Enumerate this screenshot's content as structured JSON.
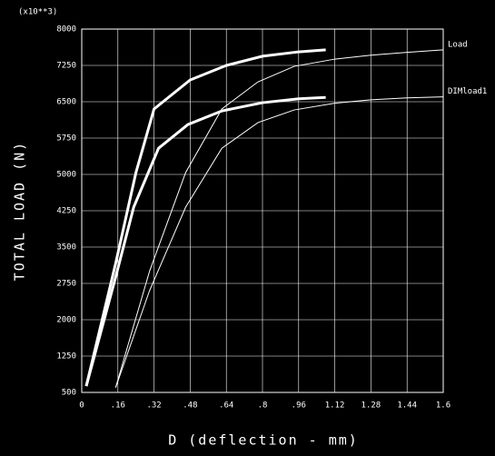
{
  "chart_data": {
    "type": "line",
    "multiplier": "(x10**3)",
    "xlabel": "D (deflection - mm)",
    "ylabel": "TOTAL LOAD (N)",
    "xlim": [
      0,
      1.6
    ],
    "ylim": [
      500,
      8000
    ],
    "xticks": [
      0,
      {
        "value": 0.16,
        "label": ".16"
      },
      {
        "value": 0.32,
        "label": ".32"
      },
      {
        "value": 0.48,
        "label": ".48"
      },
      {
        "value": 0.64,
        "label": ".64"
      },
      {
        "value": 0.8,
        "label": ".8"
      },
      {
        "value": 0.96,
        "label": ".96"
      },
      1.12,
      1.28,
      1.44,
      1.6
    ],
    "yticks": [
      500,
      1250,
      2000,
      2750,
      3500,
      4250,
      5000,
      5750,
      6500,
      7250,
      8000
    ],
    "grid": true,
    "series": [
      {
        "color": "#ffffff",
        "width": 3,
        "x": [
          0.02,
          0.15,
          0.24,
          0.32,
          0.48,
          0.64,
          0.8,
          0.96,
          1.08
        ],
        "values": [
          630,
          3160,
          5040,
          6350,
          6950,
          7250,
          7440,
          7530,
          7570
        ]
      },
      {
        "color": "#ffffff",
        "width": 3,
        "x": [
          0.02,
          0.15,
          0.23,
          0.34,
          0.47,
          0.62,
          0.8,
          0.96,
          1.08
        ],
        "values": [
          630,
          2880,
          4325,
          5540,
          6030,
          6310,
          6480,
          6560,
          6590
        ]
      },
      {
        "name": "Load",
        "color": "#ffffff",
        "width": 1,
        "x": [
          0.15,
          0.3,
          0.46,
          0.62,
          0.78,
          0.94,
          1.12,
          1.28,
          1.44,
          1.6
        ],
        "values": [
          600,
          3000,
          5040,
          6350,
          6910,
          7230,
          7380,
          7460,
          7520,
          7570
        ]
      },
      {
        "name": "DIMload1",
        "color": "#ffffff",
        "width": 1,
        "x": [
          0.15,
          0.3,
          0.46,
          0.62,
          0.78,
          0.94,
          1.12,
          1.28,
          1.44,
          1.6
        ],
        "values": [
          600,
          2600,
          4325,
          5540,
          6070,
          6330,
          6470,
          6540,
          6580,
          6600
        ]
      }
    ]
  }
}
